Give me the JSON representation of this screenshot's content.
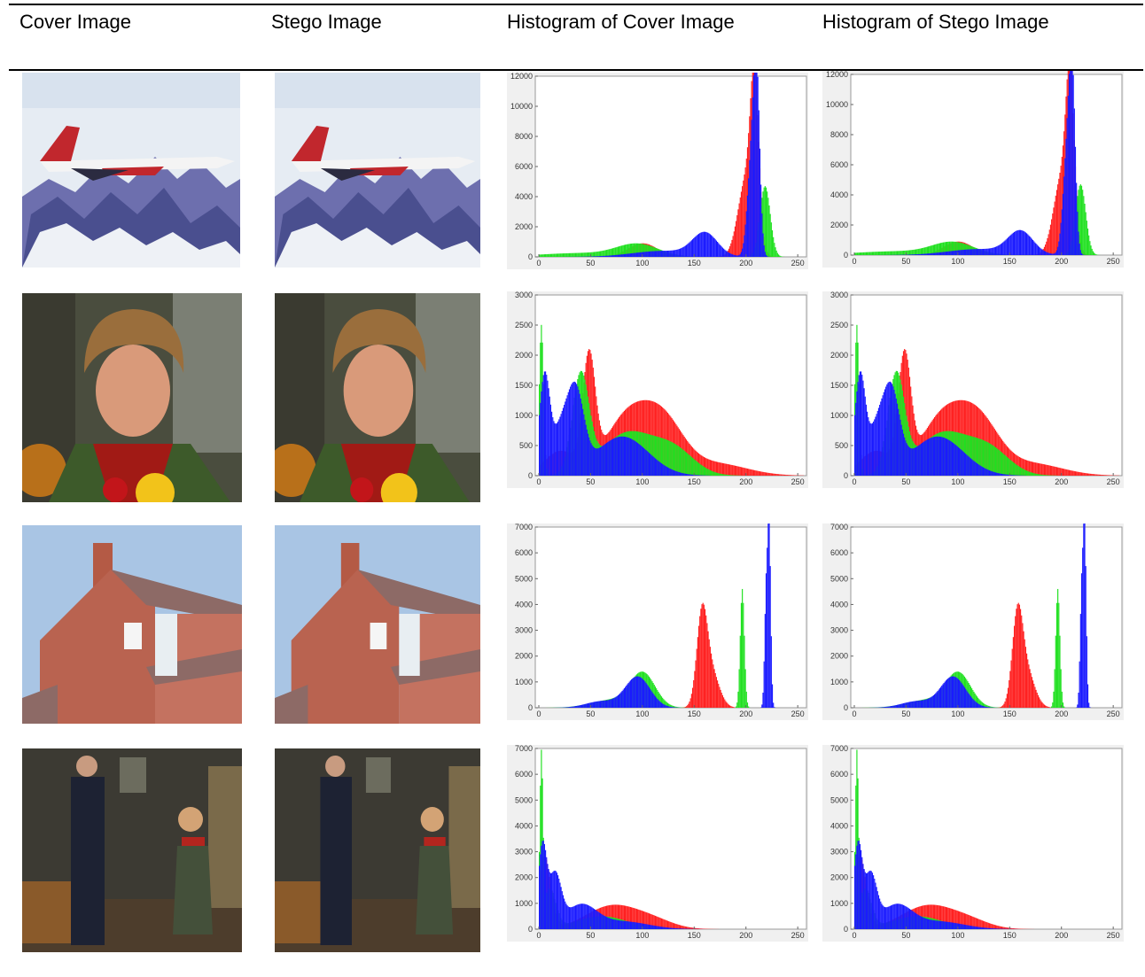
{
  "table": {
    "headers": [
      "Cover Image",
      "Stego Image",
      "Histogram of Cover Image",
      "Histogram of Stego Image"
    ]
  },
  "chart_data": [
    {
      "type": "bar",
      "image": "jet",
      "title": "",
      "xlabel": "",
      "ylabel": "",
      "xlim": [
        0,
        255
      ],
      "ylim": [
        0,
        12000
      ],
      "xticks": [
        0,
        50,
        100,
        150,
        200,
        250
      ],
      "yticks": [
        0,
        2000,
        4000,
        6000,
        8000,
        10000,
        12000
      ],
      "series": [
        {
          "color": "#ff2020",
          "peaks": [
            [
              100,
              900,
              14
            ],
            [
              200,
              5200,
              8
            ],
            [
              208,
              9800,
              4
            ]
          ]
        },
        {
          "color": "#20e020",
          "peaks": [
            [
              95,
              800,
              20
            ],
            [
              40,
              250,
              40
            ],
            [
              218,
              4700,
              5
            ]
          ]
        },
        {
          "color": "#1a1aff",
          "peaks": [
            [
              160,
              1500,
              12
            ],
            [
              205,
              6500,
              4
            ],
            [
              210,
              10400,
              3
            ],
            [
              120,
              400,
              30
            ]
          ]
        }
      ]
    },
    {
      "type": "bar",
      "image": "jet",
      "title": "",
      "xlabel": "",
      "ylabel": "",
      "xlim": [
        0,
        255
      ],
      "ylim": [
        0,
        12000
      ],
      "xticks": [
        0,
        50,
        100,
        150,
        200,
        250
      ],
      "yticks": [
        0,
        2000,
        4000,
        6000,
        8000,
        10000,
        12000
      ],
      "series": [
        {
          "color": "#ff2020",
          "peaks": [
            [
              100,
              900,
              14
            ],
            [
              200,
              5200,
              8
            ],
            [
              208,
              9800,
              4
            ]
          ]
        },
        {
          "color": "#20e020",
          "peaks": [
            [
              95,
              800,
              20
            ],
            [
              40,
              250,
              40
            ],
            [
              218,
              4700,
              5
            ]
          ]
        },
        {
          "color": "#1a1aff",
          "peaks": [
            [
              160,
              1500,
              12
            ],
            [
              205,
              6500,
              4
            ],
            [
              210,
              10400,
              3
            ],
            [
              120,
              400,
              30
            ]
          ]
        }
      ]
    },
    {
      "type": "bar",
      "image": "girl",
      "title": "",
      "xlabel": "",
      "ylabel": "",
      "xlim": [
        0,
        255
      ],
      "ylim": [
        0,
        3000
      ],
      "xticks": [
        0,
        50,
        100,
        150,
        200,
        250
      ],
      "yticks": [
        0,
        500,
        1000,
        1500,
        2000,
        2500,
        3000
      ],
      "series": [
        {
          "color": "#ff2020",
          "peaks": [
            [
              48,
              1800,
              6
            ],
            [
              85,
              950,
              22
            ],
            [
              120,
              800,
              20
            ],
            [
              170,
              200,
              30
            ],
            [
              20,
              400,
              15
            ]
          ]
        },
        {
          "color": "#20e020",
          "peaks": [
            [
              2,
              2500,
              2
            ],
            [
              40,
              1600,
              8
            ],
            [
              85,
              700,
              25
            ],
            [
              130,
              400,
              20
            ]
          ]
        },
        {
          "color": "#1a1aff",
          "peaks": [
            [
              5,
              1600,
              5
            ],
            [
              35,
              1300,
              8
            ],
            [
              80,
              650,
              25
            ],
            [
              20,
              700,
              8
            ]
          ]
        }
      ]
    },
    {
      "type": "bar",
      "image": "girl",
      "title": "",
      "xlabel": "",
      "ylabel": "",
      "xlim": [
        0,
        255
      ],
      "ylim": [
        0,
        3000
      ],
      "xticks": [
        0,
        50,
        100,
        150,
        200,
        250
      ],
      "yticks": [
        0,
        500,
        1000,
        1500,
        2000,
        2500,
        3000
      ],
      "series": [
        {
          "color": "#ff2020",
          "peaks": [
            [
              48,
              1800,
              6
            ],
            [
              85,
              950,
              22
            ],
            [
              120,
              800,
              20
            ],
            [
              170,
              200,
              30
            ],
            [
              20,
              400,
              15
            ]
          ]
        },
        {
          "color": "#20e020",
          "peaks": [
            [
              2,
              2500,
              2
            ],
            [
              40,
              1600,
              8
            ],
            [
              85,
              700,
              25
            ],
            [
              130,
              400,
              20
            ]
          ]
        },
        {
          "color": "#1a1aff",
          "peaks": [
            [
              5,
              1600,
              5
            ],
            [
              35,
              1300,
              8
            ],
            [
              80,
              650,
              25
            ],
            [
              20,
              700,
              8
            ]
          ]
        }
      ]
    },
    {
      "type": "bar",
      "image": "house",
      "title": "",
      "xlabel": "",
      "ylabel": "",
      "xlim": [
        0,
        255
      ],
      "ylim": [
        0,
        7000
      ],
      "xticks": [
        0,
        50,
        100,
        150,
        200,
        250
      ],
      "yticks": [
        0,
        1000,
        2000,
        3000,
        4000,
        5000,
        6000,
        7000
      ],
      "series": [
        {
          "color": "#ff2020",
          "peaks": [
            [
              157,
              3100,
              5
            ],
            [
              165,
              1500,
              8
            ]
          ]
        },
        {
          "color": "#20e020",
          "peaks": [
            [
              100,
              1300,
              12
            ],
            [
              196,
              4600,
              2
            ],
            [
              70,
              300,
              20
            ]
          ]
        },
        {
          "color": "#1a1aff",
          "peaks": [
            [
              95,
              1200,
              12
            ],
            [
              222,
              6700,
              1.5
            ],
            [
              219,
              4300,
              1.5
            ],
            [
              60,
              250,
              15
            ]
          ]
        }
      ]
    },
    {
      "type": "bar",
      "image": "house",
      "title": "",
      "xlabel": "",
      "ylabel": "",
      "xlim": [
        0,
        255
      ],
      "ylim": [
        0,
        7000
      ],
      "xticks": [
        0,
        50,
        100,
        150,
        200,
        250
      ],
      "yticks": [
        0,
        1000,
        2000,
        3000,
        4000,
        5000,
        6000,
        7000
      ],
      "series": [
        {
          "color": "#ff2020",
          "peaks": [
            [
              157,
              3100,
              5
            ],
            [
              165,
              1500,
              8
            ]
          ]
        },
        {
          "color": "#20e020",
          "peaks": [
            [
              100,
              1300,
              12
            ],
            [
              196,
              4600,
              2
            ],
            [
              70,
              300,
              20
            ]
          ]
        },
        {
          "color": "#1a1aff",
          "peaks": [
            [
              95,
              1200,
              12
            ],
            [
              222,
              6700,
              1.5
            ],
            [
              219,
              4300,
              1.5
            ],
            [
              60,
              250,
              15
            ]
          ]
        }
      ]
    },
    {
      "type": "bar",
      "image": "couple",
      "title": "",
      "xlabel": "",
      "ylabel": "",
      "xlim": [
        0,
        255
      ],
      "ylim": [
        0,
        7000
      ],
      "xticks": [
        0,
        50,
        100,
        150,
        200,
        250
      ],
      "yticks": [
        0,
        1000,
        2000,
        3000,
        4000,
        5000,
        6000,
        7000
      ],
      "series": [
        {
          "color": "#ff2020",
          "peaks": [
            [
              5,
              2800,
              6
            ],
            [
              70,
              900,
              25
            ],
            [
              110,
              300,
              20
            ]
          ]
        },
        {
          "color": "#20e020",
          "peaks": [
            [
              2,
              6300,
              1.5
            ],
            [
              10,
              1500,
              6
            ],
            [
              60,
              500,
              25
            ]
          ]
        },
        {
          "color": "#1a1aff",
          "peaks": [
            [
              3,
              3100,
              4
            ],
            [
              15,
              2000,
              6
            ],
            [
              40,
              900,
              15
            ],
            [
              80,
              300,
              25
            ]
          ]
        }
      ]
    },
    {
      "type": "bar",
      "image": "couple",
      "title": "",
      "xlabel": "",
      "ylabel": "",
      "xlim": [
        0,
        255
      ],
      "ylim": [
        0,
        7000
      ],
      "xticks": [
        0,
        50,
        100,
        150,
        200,
        250
      ],
      "yticks": [
        0,
        1000,
        2000,
        3000,
        4000,
        5000,
        6000,
        7000
      ],
      "series": [
        {
          "color": "#ff2020",
          "peaks": [
            [
              5,
              2800,
              6
            ],
            [
              70,
              900,
              25
            ],
            [
              110,
              300,
              20
            ]
          ]
        },
        {
          "color": "#20e020",
          "peaks": [
            [
              2,
              6300,
              1.5
            ],
            [
              10,
              1500,
              6
            ],
            [
              60,
              500,
              25
            ]
          ]
        },
        {
          "color": "#1a1aff",
          "peaks": [
            [
              3,
              3100,
              4
            ],
            [
              15,
              2000,
              6
            ],
            [
              40,
              900,
              15
            ],
            [
              80,
              300,
              25
            ]
          ]
        }
      ]
    }
  ]
}
